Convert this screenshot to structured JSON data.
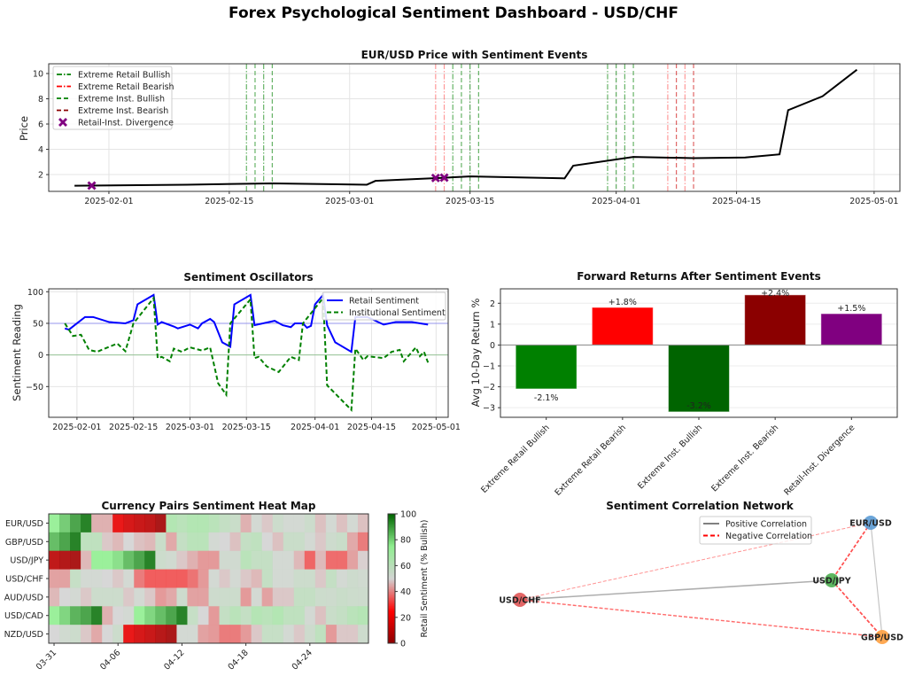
{
  "title": "Forex Psychological Sentiment Dashboard - USD/CHF",
  "chart_data": [
    {
      "type": "line",
      "title": "EUR/USD Price with Sentiment Events",
      "xlabel": "",
      "ylabel": "Price",
      "xlim": [
        "2025-01-25",
        "2025-05-04"
      ],
      "ylim": [
        0.67,
        10.77
      ],
      "grid": true,
      "legend_position": "upper-left",
      "xticks": [
        "2025-02-01",
        "2025-02-15",
        "2025-03-01",
        "2025-03-15",
        "2025-04-01",
        "2025-04-15",
        "2025-05-01"
      ],
      "yticks": [
        "2",
        "4",
        "6",
        "8",
        "10"
      ],
      "price": {
        "color": "#000000",
        "x": [
          "2025-01-28",
          "2025-02-10",
          "2025-02-20",
          "2025-03-03",
          "2025-03-04",
          "2025-03-12",
          "2025-03-15",
          "2025-03-26",
          "2025-03-27",
          "2025-04-03",
          "2025-04-10",
          "2025-04-16",
          "2025-04-20",
          "2025-04-21",
          "2025-04-25",
          "2025-04-29"
        ],
        "y": [
          1.12,
          1.2,
          1.3,
          1.2,
          1.5,
          1.75,
          1.85,
          1.7,
          2.7,
          3.4,
          3.3,
          3.35,
          3.6,
          7.1,
          8.2,
          10.3
        ]
      },
      "events": {
        "retail_bullish": [
          "2025-02-17",
          "2025-02-19",
          "2025-03-13",
          "2025-03-15",
          "2025-03-31",
          "2025-04-02"
        ],
        "inst_bullish": [
          "2025-02-18",
          "2025-02-20",
          "2025-03-14",
          "2025-03-16",
          "2025-04-01",
          "2025-04-03"
        ],
        "retail_bearish": [
          "2025-03-11",
          "2025-03-12",
          "2025-04-07",
          "2025-04-09"
        ],
        "inst_bearish": [
          "2025-04-08",
          "2025-04-10"
        ],
        "divergence": [
          {
            "x": "2025-01-30",
            "y": 1.13
          },
          {
            "x": "2025-03-11",
            "y": 1.73
          },
          {
            "x": "2025-03-12",
            "y": 1.76
          }
        ]
      },
      "legend": [
        {
          "label": "Extreme Retail Bullish",
          "color": "#008000",
          "style": "dashdot"
        },
        {
          "label": "Extreme Retail Bearish",
          "color": "#ff0000",
          "style": "dashdot"
        },
        {
          "label": "Extreme Inst. Bullish",
          "color": "#008000",
          "style": "dashed"
        },
        {
          "label": "Extreme Inst. Bearish",
          "color": "#8b0000",
          "style": "dashed"
        },
        {
          "label": "Retail-Inst. Divergence",
          "color": "#800080",
          "style": "marker-x"
        }
      ]
    },
    {
      "type": "line",
      "title": "Sentiment Oscillators",
      "xlabel": "",
      "ylabel": "Sentiment Reading",
      "xlim": [
        "2025-01-25",
        "2025-05-04"
      ],
      "ylim": [
        -98.6,
        104.6
      ],
      "grid": true,
      "legend_position": "upper-right",
      "xticks": [
        "2025-02-01",
        "2025-02-15",
        "2025-03-01",
        "2025-03-15",
        "2025-04-01",
        "2025-04-15",
        "2025-05-01"
      ],
      "yticks": [
        {
          "value": -50,
          "label": "−50"
        },
        {
          "value": 0,
          "label": "0"
        },
        {
          "value": 50,
          "label": "50"
        },
        {
          "value": 100,
          "label": "100"
        }
      ],
      "reference_lines": [
        {
          "y": 50,
          "color": "#0000ff"
        },
        {
          "y": 0,
          "color": "#008000"
        }
      ],
      "series": [
        {
          "name": "Retail Sentiment",
          "color": "#0000ff",
          "style": "solid",
          "x": [
            "2025-01-29",
            "2025-01-30",
            "2025-02-01",
            "2025-02-03",
            "2025-02-05",
            "2025-02-09",
            "2025-02-13",
            "2025-02-15",
            "2025-02-16",
            "2025-02-20",
            "2025-02-21",
            "2025-02-22",
            "2025-02-25",
            "2025-02-26",
            "2025-03-01",
            "2025-03-03",
            "2025-03-04",
            "2025-03-06",
            "2025-03-07",
            "2025-03-09",
            "2025-03-11",
            "2025-03-12",
            "2025-03-16",
            "2025-03-17",
            "2025-03-22",
            "2025-03-24",
            "2025-03-26",
            "2025-03-27",
            "2025-03-29",
            "2025-03-30",
            "2025-03-31",
            "2025-04-01",
            "2025-04-03",
            "2025-04-04",
            "2025-04-06",
            "2025-04-10",
            "2025-04-11",
            "2025-04-14",
            "2025-04-18",
            "2025-04-21",
            "2025-04-25",
            "2025-04-29"
          ],
          "y": [
            42,
            40,
            50,
            60,
            60,
            52,
            50,
            55,
            80,
            95,
            48,
            52,
            45,
            42,
            48,
            42,
            50,
            57,
            52,
            20,
            13,
            80,
            95,
            47,
            54,
            47,
            44,
            50,
            50,
            43,
            46,
            80,
            95,
            47,
            20,
            5,
            60,
            60,
            48,
            52,
            52,
            48
          ]
        },
        {
          "name": "Institutional Sentiment",
          "color": "#008000",
          "style": "dashed",
          "x": [
            "2025-01-29",
            "2025-01-31",
            "2025-02-02",
            "2025-02-04",
            "2025-02-06",
            "2025-02-09",
            "2025-02-11",
            "2025-02-13",
            "2025-02-15",
            "2025-02-20",
            "2025-02-21",
            "2025-02-22",
            "2025-02-24",
            "2025-02-25",
            "2025-02-27",
            "2025-03-01",
            "2025-03-04",
            "2025-03-06",
            "2025-03-08",
            "2025-03-10",
            "2025-03-11",
            "2025-03-16",
            "2025-03-17",
            "2025-03-18",
            "2025-03-20",
            "2025-03-23",
            "2025-03-26",
            "2025-03-28",
            "2025-03-29",
            "2025-04-03",
            "2025-04-04",
            "2025-04-10",
            "2025-04-11",
            "2025-04-13",
            "2025-04-14",
            "2025-04-18",
            "2025-04-20",
            "2025-04-22",
            "2025-04-23",
            "2025-04-26",
            "2025-04-27",
            "2025-04-28",
            "2025-04-29"
          ],
          "y": [
            50,
            30,
            32,
            8,
            5,
            13,
            18,
            6,
            50,
            90,
            -5,
            -3,
            -10,
            10,
            5,
            12,
            7,
            12,
            -45,
            -63,
            50,
            88,
            -5,
            -3,
            -18,
            -27,
            -3,
            -8,
            50,
            90,
            -48,
            -87,
            10,
            -8,
            -2,
            -5,
            5,
            8,
            -10,
            12,
            -2,
            5,
            -12
          ]
        }
      ]
    },
    {
      "type": "bar",
      "title": "Forward Returns After Sentiment Events",
      "xlabel": "",
      "ylabel": "Avg 10-Day Return %",
      "ylim": [
        -3.46,
        2.69
      ],
      "grid": true,
      "yticks": [
        {
          "value": -3,
          "label": "−3"
        },
        {
          "value": -2,
          "label": "−2"
        },
        {
          "value": -1,
          "label": "−1"
        },
        {
          "value": 0,
          "label": "0"
        },
        {
          "value": 1,
          "label": "1"
        },
        {
          "value": 2,
          "label": "2"
        }
      ],
      "categories": [
        "Extreme Retail Bullish",
        "Extreme Retail Bearish",
        "Extreme Inst. Bullish",
        "Extreme Inst. Bearish",
        "Retail-Inst. Divergence"
      ],
      "values": [
        -2.1,
        1.8,
        -3.2,
        2.4,
        1.5
      ],
      "data_labels": [
        "-2.1%",
        "+1.8%",
        "-3.2%",
        "+2.4%",
        "+1.5%"
      ],
      "colors": [
        "#008000",
        "#ff0000",
        "#006400",
        "#8b0000",
        "#800080"
      ]
    },
    {
      "type": "heatmap",
      "title": "Currency Pairs Sentiment Heat Map",
      "rows": [
        "EUR/USD",
        "GBP/USD",
        "USD/JPY",
        "USD/CHF",
        "AUD/USD",
        "USD/CAD",
        "NZD/USD"
      ],
      "xticks": [
        {
          "col": 0,
          "label": "03-31"
        },
        {
          "col": 6,
          "label": "04-06"
        },
        {
          "col": 12,
          "label": "04-12"
        },
        {
          "col": 18,
          "label": "04-18"
        },
        {
          "col": 24,
          "label": "04-24"
        }
      ],
      "values": [
        [
          75,
          82,
          90,
          97,
          45,
          45,
          20,
          15,
          12,
          10,
          5,
          65,
          62,
          65,
          65,
          62,
          58,
          56,
          45,
          52,
          48,
          55,
          52,
          52,
          55,
          47,
          52,
          47,
          52,
          47
        ],
        [
          85,
          90,
          97,
          60,
          60,
          48,
          46,
          50,
          47,
          46,
          56,
          44,
          58,
          62,
          62,
          52,
          50,
          47,
          58,
          60,
          50,
          47,
          56,
          56,
          52,
          48,
          54,
          56,
          44,
          38
        ],
        [
          10,
          7,
          5,
          46,
          75,
          75,
          78,
          85,
          90,
          97,
          55,
          53,
          48,
          45,
          42,
          42,
          53,
          53,
          62,
          58,
          58,
          52,
          52,
          46,
          35,
          46,
          36,
          36,
          43,
          49
        ],
        [
          43,
          43,
          57,
          52,
          52,
          50,
          48,
          52,
          38,
          34,
          34,
          34,
          34,
          37,
          42,
          52,
          48,
          52,
          48,
          46,
          58,
          52,
          52,
          55,
          55,
          48,
          58,
          52,
          54,
          53
        ],
        [
          46,
          50,
          52,
          48,
          55,
          55,
          55,
          48,
          52,
          48,
          42,
          44,
          54,
          43,
          43,
          54,
          55,
          55,
          42,
          52,
          43,
          48,
          48,
          58,
          58,
          55,
          54,
          56,
          55,
          54
        ],
        [
          75,
          80,
          87,
          90,
          97,
          45,
          50,
          52,
          75,
          80,
          85,
          90,
          97,
          57,
          50,
          42,
          58,
          62,
          58,
          64,
          62,
          65,
          60,
          60,
          52,
          47,
          56,
          58,
          62,
          64
        ],
        [
          50,
          53,
          55,
          48,
          44,
          50,
          55,
          20,
          15,
          12,
          8,
          5,
          52,
          52,
          43,
          42,
          38,
          38,
          42,
          48,
          57,
          57,
          52,
          48,
          54,
          60,
          42,
          48,
          48,
          54
        ]
      ],
      "colorbar": {
        "label": "Retail Sentiment (% Bullish)",
        "ticks": [
          "0",
          "20",
          "40",
          "60",
          "80",
          "100"
        ],
        "range": [
          0,
          100
        ]
      },
      "colormap": [
        "#8b0000",
        "#ff0000",
        "#d3d3d3",
        "#90ee90",
        "#006400"
      ]
    },
    {
      "type": "network",
      "title": "Sentiment Correlation Network",
      "legend_position": "upper-right",
      "legend": [
        {
          "label": "Positive Correlation",
          "color": "#808080",
          "style": "solid"
        },
        {
          "label": "Negative Correlation",
          "color": "#ff0000",
          "style": "dashed"
        }
      ],
      "nodes": [
        {
          "name": "EUR/USD",
          "color": "#5b9bd5"
        },
        {
          "name": "USD/JPY",
          "color": "#4caf50"
        },
        {
          "name": "USD/CHF",
          "color": "#e05555"
        },
        {
          "name": "GBP/USD",
          "color": "#ffa040"
        }
      ],
      "edges": [
        {
          "from": "USD/CHF",
          "to": "EUR/USD",
          "type": "negative",
          "strength": 0.3
        },
        {
          "from": "USD/CHF",
          "to": "USD/JPY",
          "type": "positive",
          "strength": 0.7
        },
        {
          "from": "USD/CHF",
          "to": "GBP/USD",
          "type": "negative",
          "strength": 0.6
        },
        {
          "from": "EUR/USD",
          "to": "USD/JPY",
          "type": "negative",
          "strength": 0.8
        },
        {
          "from": "EUR/USD",
          "to": "GBP/USD",
          "type": "positive",
          "strength": 0.4
        },
        {
          "from": "USD/JPY",
          "to": "GBP/USD",
          "type": "negative",
          "strength": 0.8
        }
      ]
    }
  ]
}
